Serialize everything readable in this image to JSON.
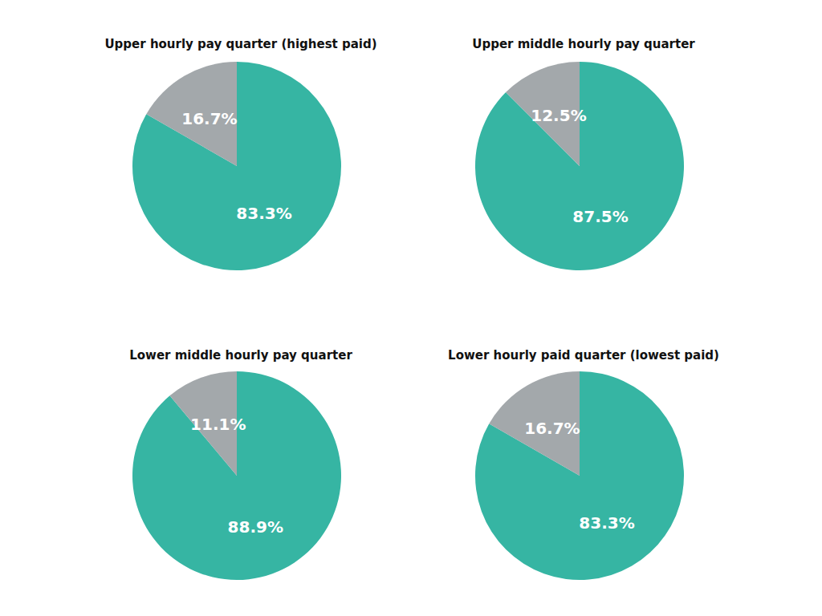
{
  "chart_data": [
    {
      "type": "pie",
      "title": "Upper hourly pay quarter (highest paid)",
      "values": [
        83.3,
        16.7
      ],
      "value_labels": [
        "83.3%",
        "16.7%"
      ],
      "colors": [
        "#36b5a3",
        "#a3a8ab"
      ],
      "data_labels": true
    },
    {
      "type": "pie",
      "title": "Upper middle hourly pay quarter",
      "values": [
        87.5,
        12.5
      ],
      "value_labels": [
        "87.5%",
        "12.5%"
      ],
      "colors": [
        "#36b5a3",
        "#a3a8ab"
      ],
      "data_labels": true
    },
    {
      "type": "pie",
      "title": "Lower middle hourly pay quarter",
      "values": [
        88.9,
        11.1
      ],
      "value_labels": [
        "88.9%",
        "11.1%"
      ],
      "colors": [
        "#36b5a3",
        "#a3a8ab"
      ],
      "data_labels": true
    },
    {
      "type": "pie",
      "title": "Lower hourly paid quarter (lowest paid)",
      "values": [
        83.3,
        16.7
      ],
      "value_labels": [
        "83.3%",
        "16.7%"
      ],
      "colors": [
        "#36b5a3",
        "#a3a8ab"
      ],
      "data_labels": true
    }
  ]
}
